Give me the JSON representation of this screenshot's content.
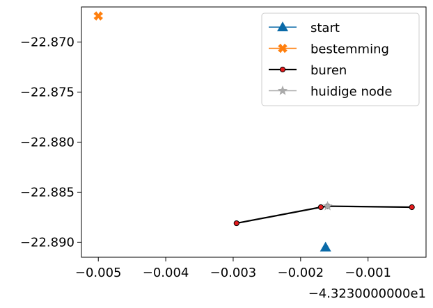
{
  "chart_data": {
    "type": "line",
    "title": "",
    "xlabel": "",
    "ylabel": "",
    "x_offset_text": "−4.3230000000e1",
    "xlim": [
      -0.00525,
      -0.00014
    ],
    "ylim": [
      -22.8915,
      -22.8665
    ],
    "xticks": [
      -0.005,
      -0.004,
      -0.003,
      -0.002,
      -0.001
    ],
    "xtick_labels": [
      "−0.005",
      "−0.004",
      "−0.003",
      "−0.002",
      "−0.001"
    ],
    "yticks": [
      -22.87,
      -22.875,
      -22.88,
      -22.885,
      -22.89
    ],
    "ytick_labels": [
      "−22.870",
      "−22.875",
      "−22.880",
      "−22.885",
      "−22.890"
    ],
    "grid": false,
    "legend_position": "top-right",
    "series": [
      {
        "name": "start",
        "color": "#0a6aa8",
        "marker": "triangle",
        "line": false,
        "points": [
          {
            "x": -0.00163,
            "y": -22.8905
          }
        ]
      },
      {
        "name": "bestemming",
        "color": "#ff7f0e",
        "marker": "x-filled",
        "line": false,
        "points": [
          {
            "x": -0.005,
            "y": -22.8674
          }
        ]
      },
      {
        "name": "buren",
        "color": "#000000",
        "marker_fill": "#e31a1c",
        "marker": "circle",
        "line": true,
        "points": [
          {
            "x": -0.00295,
            "y": -22.8881
          },
          {
            "x": -0.0017,
            "y": -22.8865
          },
          {
            "x": -0.0016,
            "y": -22.8864
          },
          {
            "x": -0.00035,
            "y": -22.8865
          }
        ]
      },
      {
        "name": "huidige node",
        "color": "#aaaaaa",
        "marker": "star",
        "line": false,
        "points": [
          {
            "x": -0.0016,
            "y": -22.8864
          }
        ]
      }
    ]
  }
}
